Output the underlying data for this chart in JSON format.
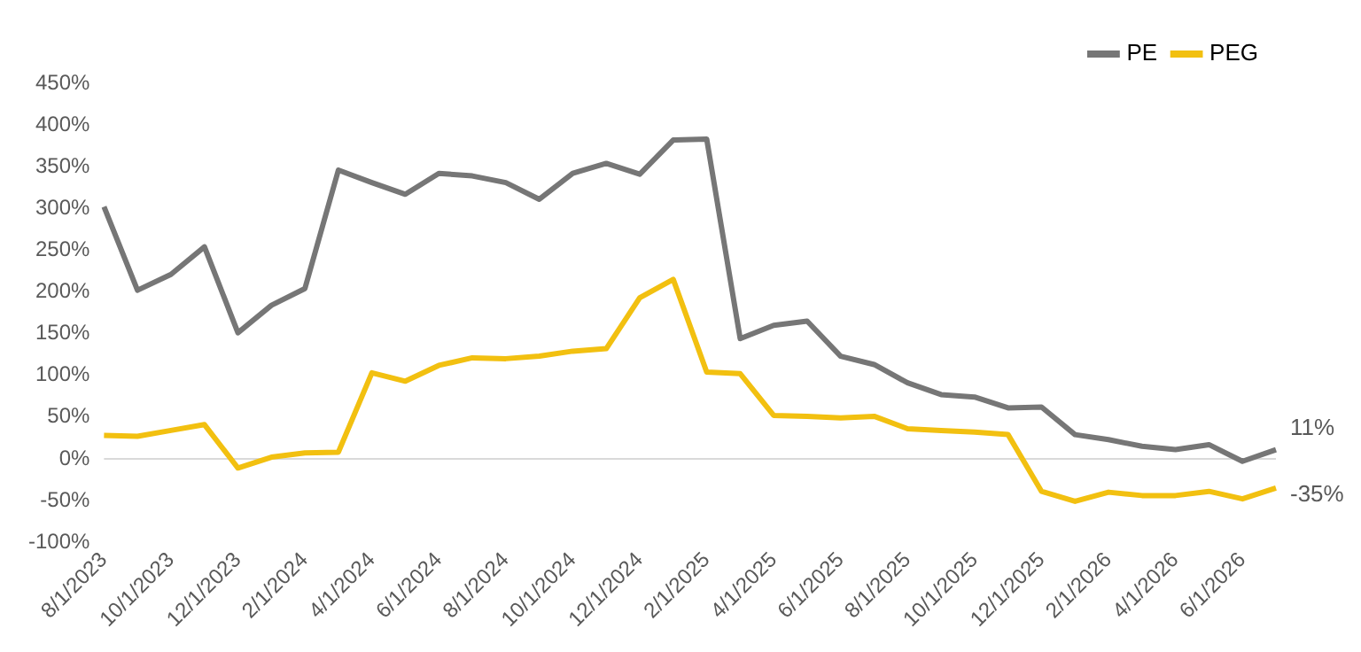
{
  "chart_data": {
    "type": "line",
    "categories": [
      "8/1/2023",
      null,
      "10/1/2023",
      null,
      "12/1/2023",
      null,
      "2/1/2024",
      null,
      "4/1/2024",
      null,
      "6/1/2024",
      null,
      "8/1/2024",
      null,
      "10/1/2024",
      null,
      "12/1/2024",
      null,
      "2/1/2025",
      null,
      "4/1/2025",
      null,
      "6/1/2025",
      null,
      "8/1/2025",
      null,
      "10/1/2025",
      null,
      "12/1/2025",
      null,
      "2/1/2026",
      null,
      "4/1/2026",
      null,
      "6/1/2026",
      null
    ],
    "series": [
      {
        "name": "PE",
        "color": "#767676",
        "values": [
          302,
          202,
          221,
          254,
          151,
          184,
          204,
          346,
          331,
          317,
          342,
          339,
          331,
          311,
          342,
          354,
          341,
          382,
          383,
          144,
          160,
          165,
          123,
          113,
          91,
          77,
          74,
          61,
          62,
          29,
          23,
          15,
          11,
          17,
          -3,
          11
        ],
        "value_labels": [
          null,
          null,
          null,
          null,
          null,
          null,
          null,
          null,
          null,
          null,
          null,
          null,
          null,
          null,
          null,
          null,
          null,
          null,
          null,
          null,
          null,
          null,
          null,
          null,
          null,
          null,
          null,
          null,
          null,
          null,
          null,
          null,
          null,
          null,
          null,
          "11%"
        ]
      },
      {
        "name": "PEG",
        "color": "#f2c010",
        "values": [
          28,
          27,
          34,
          41,
          -11,
          2,
          7,
          8,
          103,
          93,
          112,
          121,
          120,
          123,
          129,
          132,
          193,
          215,
          104,
          102,
          52,
          51,
          49,
          51,
          36,
          34,
          32,
          29,
          -39,
          -51,
          -40,
          -44,
          -44,
          -39,
          -48,
          -35
        ],
        "value_labels": [
          null,
          null,
          null,
          null,
          null,
          null,
          null,
          null,
          null,
          null,
          null,
          null,
          null,
          null,
          null,
          null,
          null,
          null,
          null,
          null,
          null,
          null,
          null,
          null,
          null,
          null,
          null,
          null,
          null,
          null,
          null,
          null,
          null,
          null,
          null,
          "-35%"
        ]
      }
    ],
    "ylim": [
      -100,
      450
    ],
    "yticks": [
      {
        "value": -100,
        "label": "-100%"
      },
      {
        "value": -50,
        "label": "-50%"
      },
      {
        "value": 0,
        "label": "0%"
      },
      {
        "value": 50,
        "label": "50%"
      },
      {
        "value": 100,
        "label": "100%"
      },
      {
        "value": 150,
        "label": "150%"
      },
      {
        "value": 200,
        "label": "200%"
      },
      {
        "value": 250,
        "label": "250%"
      },
      {
        "value": 300,
        "label": "300%"
      },
      {
        "value": 350,
        "label": "350%"
      },
      {
        "value": 400,
        "label": "400%"
      },
      {
        "value": 450,
        "label": "450%"
      }
    ],
    "ref_lines": [
      {
        "axis": "y",
        "value": 0,
        "color": "#d9d9d9"
      }
    ],
    "grid": false,
    "legend": "top right",
    "marker": "none",
    "line_style": "solid"
  }
}
